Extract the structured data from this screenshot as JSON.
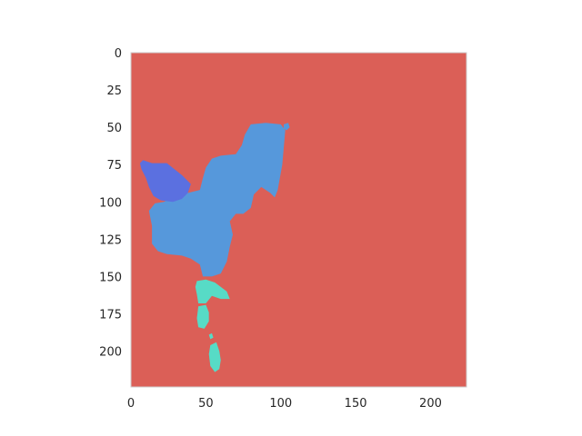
{
  "chart_data": {
    "type": "heatmap",
    "title": "",
    "xlabel": "",
    "ylabel": "",
    "xlim": [
      0,
      224
    ],
    "ylim": [
      224,
      0
    ],
    "grid": false,
    "x_ticks": [
      "0",
      "50",
      "100",
      "150",
      "200"
    ],
    "y_ticks": [
      "0",
      "25",
      "50",
      "75",
      "100",
      "125",
      "150",
      "175",
      "200"
    ],
    "colors": {
      "background": "#db5f57",
      "main": "#5698db",
      "dark": "#5b70e0",
      "cyan": "#57dbc6",
      "spine": "#cccccc"
    },
    "regions": [
      {
        "name": "main-region",
        "color": "#5698db",
        "points": [
          [
            76,
            55
          ],
          [
            80,
            48
          ],
          [
            90,
            47
          ],
          [
            100,
            48
          ],
          [
            103,
            52
          ],
          [
            101,
            75
          ],
          [
            98,
            92
          ],
          [
            96,
            97
          ],
          [
            93,
            94
          ],
          [
            87,
            90
          ],
          [
            82,
            95
          ],
          [
            80,
            104
          ],
          [
            75,
            108
          ],
          [
            70,
            108
          ],
          [
            66,
            113
          ],
          [
            68,
            122
          ],
          [
            66,
            130
          ],
          [
            64,
            140
          ],
          [
            60,
            148
          ],
          [
            54,
            150
          ],
          [
            48,
            150
          ],
          [
            46,
            142
          ],
          [
            40,
            138
          ],
          [
            34,
            136
          ],
          [
            24,
            135
          ],
          [
            18,
            133
          ],
          [
            14,
            128
          ],
          [
            14,
            116
          ],
          [
            12,
            106
          ],
          [
            16,
            101
          ],
          [
            22,
            100
          ],
          [
            30,
            96
          ],
          [
            38,
            94
          ],
          [
            46,
            92
          ],
          [
            48,
            84
          ],
          [
            50,
            77
          ],
          [
            54,
            71
          ],
          [
            60,
            69
          ],
          [
            70,
            68
          ],
          [
            74,
            62
          ]
        ]
      },
      {
        "name": "tip-region",
        "color": "#5698db",
        "points": [
          [
            102,
            48
          ],
          [
            105,
            47
          ],
          [
            106,
            50
          ],
          [
            104,
            52
          ],
          [
            102,
            51
          ]
        ]
      },
      {
        "name": "dark-region",
        "color": "#5b70e0",
        "points": [
          [
            6,
            74
          ],
          [
            8,
            72
          ],
          [
            14,
            74
          ],
          [
            24,
            74
          ],
          [
            34,
            82
          ],
          [
            40,
            88
          ],
          [
            38,
            94
          ],
          [
            34,
            98
          ],
          [
            28,
            100
          ],
          [
            20,
            99
          ],
          [
            15,
            96
          ],
          [
            12,
            90
          ],
          [
            10,
            84
          ],
          [
            7,
            78
          ]
        ]
      },
      {
        "name": "cyan-region-1",
        "color": "#57dbc6",
        "points": [
          [
            44,
            153
          ],
          [
            50,
            152
          ],
          [
            56,
            154
          ],
          [
            60,
            157
          ],
          [
            64,
            160
          ],
          [
            66,
            165
          ],
          [
            60,
            165
          ],
          [
            54,
            163
          ],
          [
            50,
            168
          ],
          [
            45,
            168
          ],
          [
            44,
            162
          ],
          [
            43,
            157
          ]
        ]
      },
      {
        "name": "cyan-region-2",
        "color": "#57dbc6",
        "points": [
          [
            45,
            170
          ],
          [
            50,
            169
          ],
          [
            52,
            174
          ],
          [
            52,
            180
          ],
          [
            49,
            185
          ],
          [
            45,
            184
          ],
          [
            44,
            178
          ]
        ]
      },
      {
        "name": "cyan-region-3",
        "color": "#57dbc6",
        "points": [
          [
            53,
            196
          ],
          [
            57,
            194
          ],
          [
            59,
            200
          ],
          [
            60,
            206
          ],
          [
            59,
            212
          ],
          [
            56,
            214
          ],
          [
            53,
            210
          ],
          [
            52,
            202
          ]
        ]
      },
      {
        "name": "cyan-region-4",
        "color": "#57dbc6",
        "points": [
          [
            52,
            189
          ],
          [
            54,
            188
          ],
          [
            55,
            191
          ],
          [
            53,
            192
          ]
        ]
      }
    ]
  }
}
